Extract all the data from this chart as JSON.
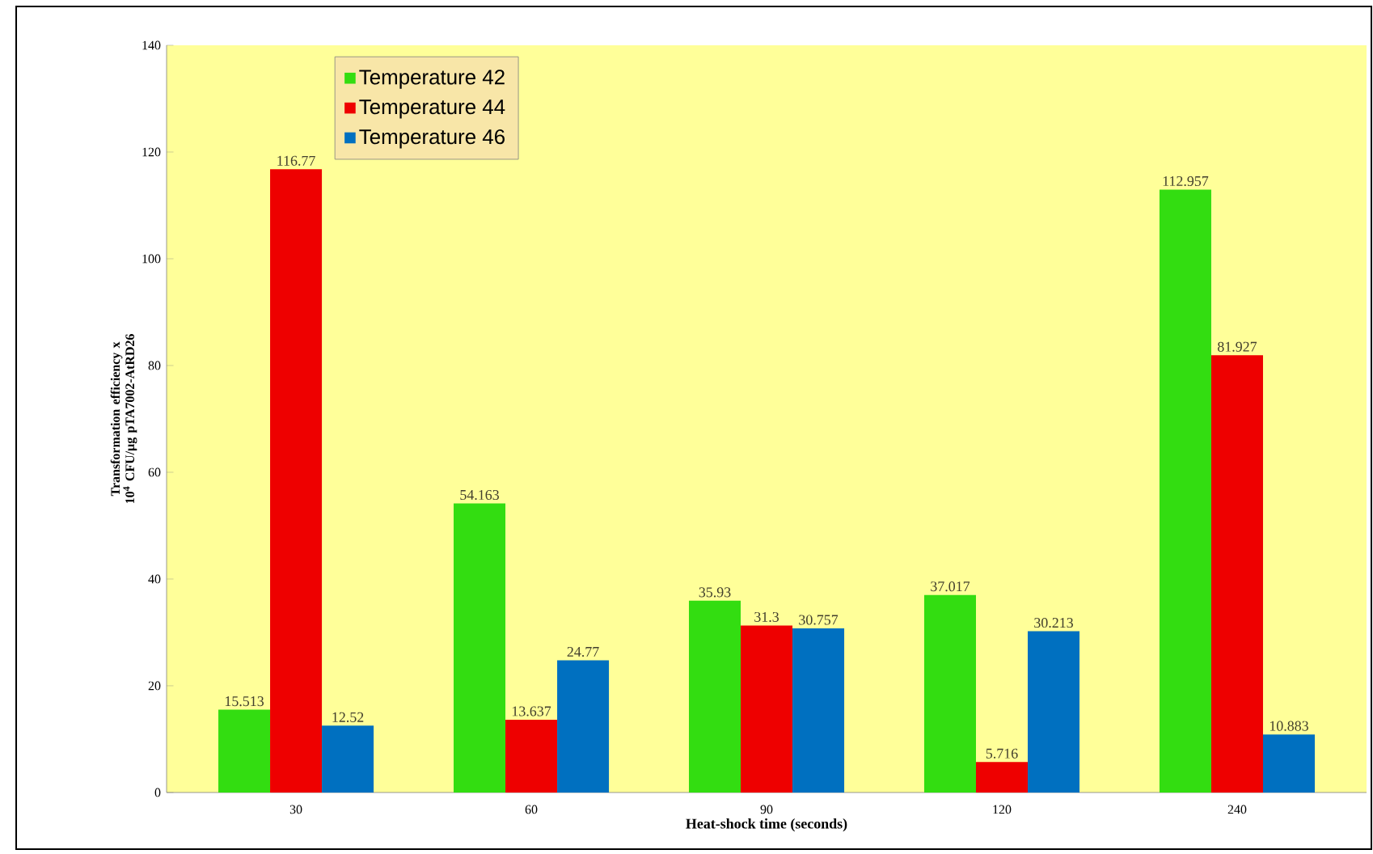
{
  "chart_data": {
    "type": "bar",
    "xlabel": "Heat-shock time (seconds)",
    "ylabel": "Transformation efficiency x 10$^{4}$ CFU/µg pTA7002-AtRD26",
    "categories": [
      "30",
      "60",
      "90",
      "120",
      "240"
    ],
    "series": [
      {
        "name": "Temperature 42",
        "color": "#33dd11",
        "values": [
          15.513,
          54.163,
          35.93,
          37.017,
          112.957
        ]
      },
      {
        "name": "Temperature 44",
        "color": "#ee0000",
        "values": [
          116.77,
          13.637,
          31.3,
          5.716,
          81.927
        ]
      },
      {
        "name": "Temperature 46",
        "color": "#0070c0",
        "values": [
          12.52,
          24.77,
          30.757,
          30.213,
          10.883
        ]
      }
    ],
    "ylim": [
      0,
      140
    ],
    "yticks": [
      0,
      20,
      40,
      60,
      80,
      100,
      120,
      140
    ],
    "data_labels": true,
    "grid": false,
    "legend": "top left"
  }
}
